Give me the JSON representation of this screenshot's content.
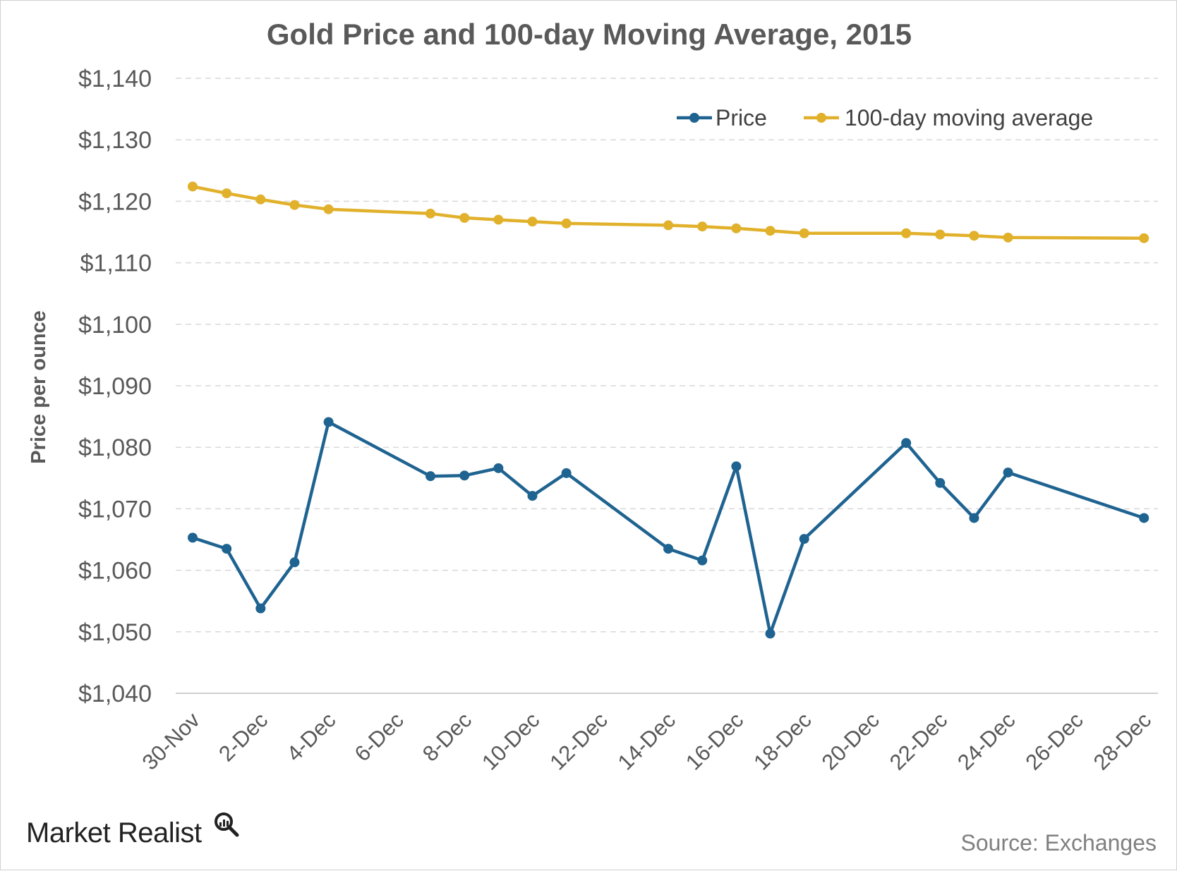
{
  "chart_data": {
    "type": "line",
    "title": "Gold Price and 100-day Moving Average, 2015",
    "ylabel": "Price per ounce",
    "xlabel": "",
    "ylim": [
      1040,
      1140
    ],
    "yticks": [
      1040,
      1050,
      1060,
      1070,
      1080,
      1090,
      1100,
      1110,
      1120,
      1130,
      1140
    ],
    "ytick_labels": [
      "$1,040",
      "$1,050",
      "$1,060",
      "$1,070",
      "$1,080",
      "$1,090",
      "$1,100",
      "$1,110",
      "$1,120",
      "$1,130",
      "$1,140"
    ],
    "x_range_days": [
      "30-Nov",
      "28-Dec"
    ],
    "xtick_labels": [
      "30-Nov",
      "2-Dec",
      "4-Dec",
      "6-Dec",
      "8-Dec",
      "10-Dec",
      "12-Dec",
      "14-Dec",
      "16-Dec",
      "18-Dec",
      "20-Dec",
      "22-Dec",
      "24-Dec",
      "26-Dec",
      "28-Dec"
    ],
    "grid": true,
    "legend_position": "top-right",
    "series": [
      {
        "name": "Price",
        "color": "#1f6391",
        "x": [
          "30-Nov",
          "1-Dec",
          "2-Dec",
          "3-Dec",
          "4-Dec",
          "7-Dec",
          "8-Dec",
          "9-Dec",
          "10-Dec",
          "11-Dec",
          "14-Dec",
          "15-Dec",
          "16-Dec",
          "17-Dec",
          "18-Dec",
          "21-Dec",
          "22-Dec",
          "23-Dec",
          "24-Dec",
          "28-Dec"
        ],
        "values": [
          1065.3,
          1063.5,
          1053.8,
          1061.3,
          1084.1,
          1075.3,
          1075.4,
          1076.6,
          1072.1,
          1075.8,
          1063.5,
          1061.6,
          1076.9,
          1049.7,
          1065.1,
          1080.7,
          1074.2,
          1068.5,
          1075.9,
          1068.5
        ]
      },
      {
        "name": "100-day moving average",
        "color": "#e1b12c",
        "x": [
          "30-Nov",
          "1-Dec",
          "2-Dec",
          "3-Dec",
          "4-Dec",
          "7-Dec",
          "8-Dec",
          "9-Dec",
          "10-Dec",
          "11-Dec",
          "14-Dec",
          "15-Dec",
          "16-Dec",
          "17-Dec",
          "18-Dec",
          "21-Dec",
          "22-Dec",
          "23-Dec",
          "24-Dec",
          "28-Dec"
        ],
        "values": [
          1122.4,
          1121.3,
          1120.3,
          1119.4,
          1118.7,
          1118.0,
          1117.3,
          1117.0,
          1116.7,
          1116.4,
          1116.1,
          1115.9,
          1115.6,
          1115.2,
          1114.8,
          1114.8,
          1114.6,
          1114.4,
          1114.1,
          1114.0
        ]
      }
    ]
  },
  "footer": {
    "brand": "Market Realist",
    "source": "Source: Exchanges"
  }
}
